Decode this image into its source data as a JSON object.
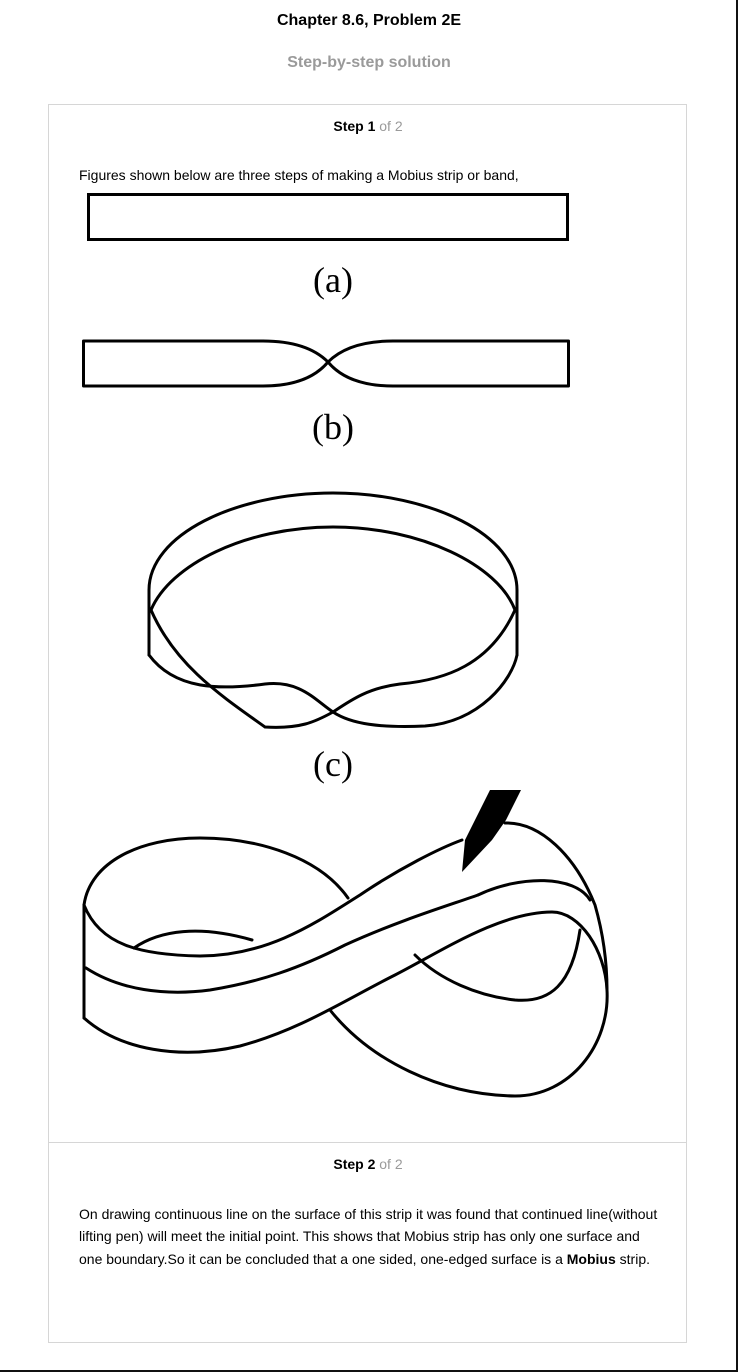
{
  "header": {
    "chapter_title": "Chapter 8.6, Problem 2E",
    "solution_title": "Step-by-step solution"
  },
  "step1": {
    "label": "Step 1",
    "of_text": "of 2",
    "intro": "Figures shown below are three steps of making a Mobius strip or band,",
    "figure_labels": [
      "(a)",
      "(b)",
      "(c)"
    ]
  },
  "step2": {
    "label": "Step 2",
    "of_text": "of 2",
    "text_before_bold": "On drawing continuous line on the surface of this strip it was found that continued line(without lifting pen) will meet the initial point. This shows that Mobius strip has only one surface and one boundary.So it can be concluded that a one sided, one-edged surface is a ",
    "bold_word": "Mobius",
    "text_after_bold": " strip."
  }
}
